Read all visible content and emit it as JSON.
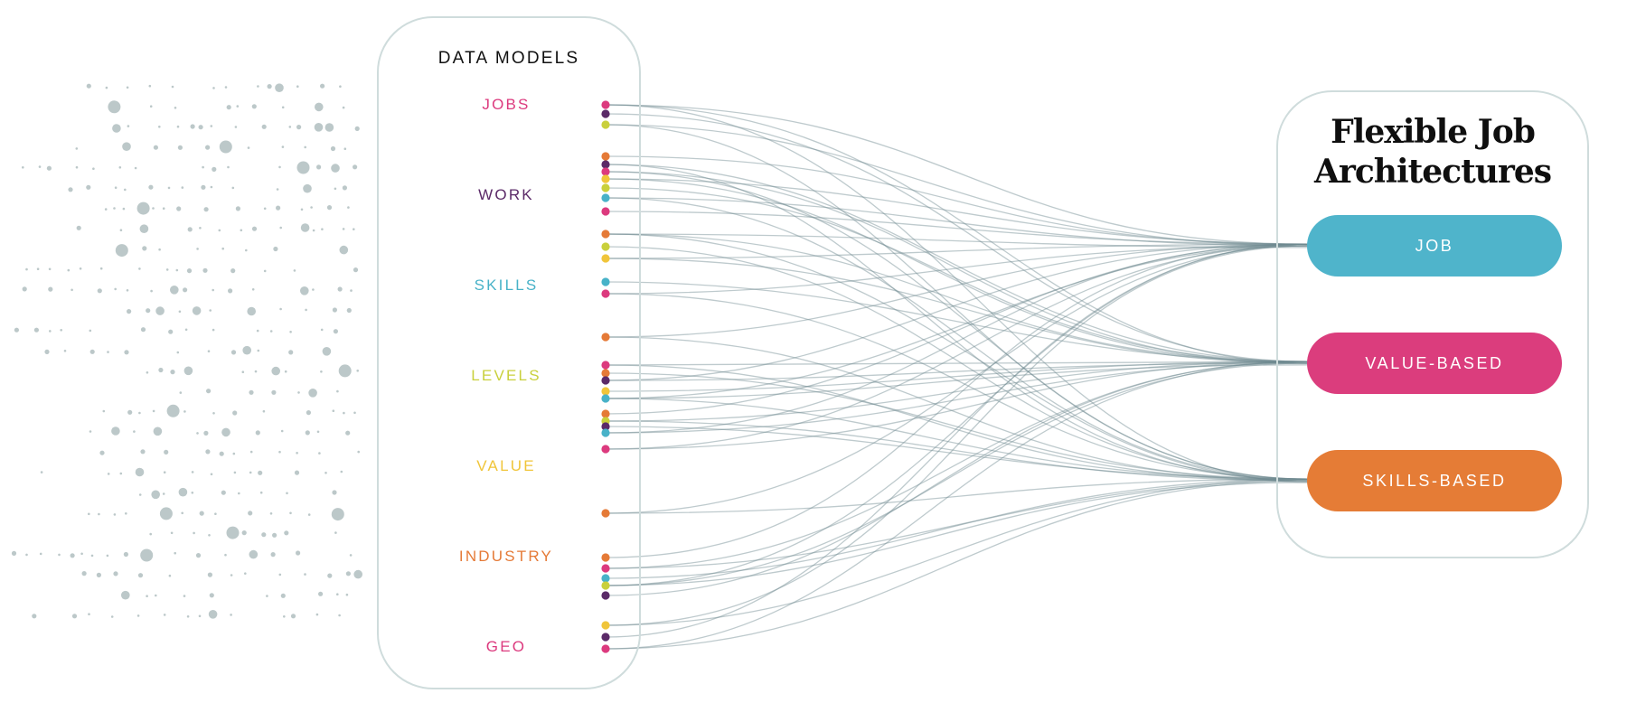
{
  "data_models": {
    "title": "DATA MODELS",
    "items": [
      {
        "label": "JOBS",
        "color": "#dc3a7e"
      },
      {
        "label": "WORK",
        "color": "#5b2a68"
      },
      {
        "label": "SKILLS",
        "color": "#48b2c8"
      },
      {
        "label": "LEVELS",
        "color": "#c9d03c"
      },
      {
        "label": "VALUE",
        "color": "#f0c53a"
      },
      {
        "label": "INDUSTRY",
        "color": "#e57a37"
      },
      {
        "label": "GEO",
        "color": "#dc3a7e"
      }
    ]
  },
  "architectures": {
    "title_line1": "Flexible Job",
    "title_line2": "Architectures",
    "targets": [
      {
        "label": "JOB",
        "color": "#4fb4cb"
      },
      {
        "label": "VALUE-BASED",
        "color": "#db3d7d"
      },
      {
        "label": "SKILLS-BASED",
        "color": "#e57c36"
      }
    ]
  },
  "palette": {
    "orange": "#e57a37",
    "purple": "#5b2a68",
    "pink": "#dc3a7e",
    "yellow": "#f0c53a",
    "lime": "#c9d03c",
    "teal": "#48b2c8",
    "scatter": "#bcc8c9",
    "connector": "#6f8a90"
  }
}
